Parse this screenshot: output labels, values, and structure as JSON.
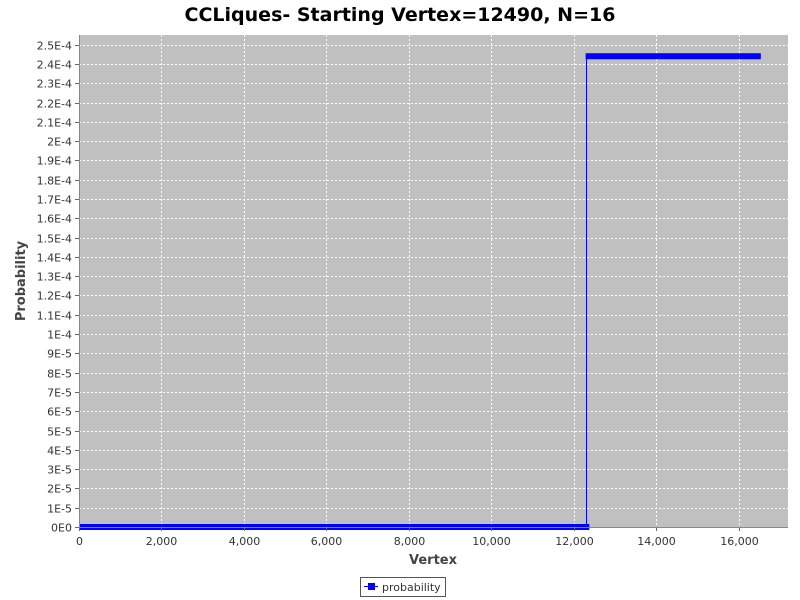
{
  "chart_data": {
    "type": "line",
    "title": "CCLiques- Starting Vertex=12490, N=16",
    "xlabel": "Vertex",
    "ylabel": "Probability",
    "xlim": [
      0,
      17200
    ],
    "ylim": [
      0,
      0.000255
    ],
    "x_ticks": [
      {
        "value": 0,
        "label": "0"
      },
      {
        "value": 2000,
        "label": "2,000"
      },
      {
        "value": 4000,
        "label": "4,000"
      },
      {
        "value": 6000,
        "label": "6,000"
      },
      {
        "value": 8000,
        "label": "8,000"
      },
      {
        "value": 10000,
        "label": "10,000"
      },
      {
        "value": 12000,
        "label": "12,000"
      },
      {
        "value": 14000,
        "label": "14,000"
      },
      {
        "value": 16000,
        "label": "16,000"
      }
    ],
    "y_ticks": [
      {
        "value": 0,
        "label": "0E0"
      },
      {
        "value": 1e-05,
        "label": "1E-5"
      },
      {
        "value": 2e-05,
        "label": "2E-5"
      },
      {
        "value": 3e-05,
        "label": "3E-5"
      },
      {
        "value": 4e-05,
        "label": "4E-5"
      },
      {
        "value": 5e-05,
        "label": "5E-5"
      },
      {
        "value": 6e-05,
        "label": "6E-5"
      },
      {
        "value": 7e-05,
        "label": "7E-5"
      },
      {
        "value": 8e-05,
        "label": "8E-5"
      },
      {
        "value": 9e-05,
        "label": "9E-5"
      },
      {
        "value": 0.0001,
        "label": "1E-4"
      },
      {
        "value": 0.00011,
        "label": "1.1E-4"
      },
      {
        "value": 0.00012,
        "label": "1.2E-4"
      },
      {
        "value": 0.00013,
        "label": "1.3E-4"
      },
      {
        "value": 0.00014,
        "label": "1.4E-4"
      },
      {
        "value": 0.00015,
        "label": "1.5E-4"
      },
      {
        "value": 0.00016,
        "label": "1.6E-4"
      },
      {
        "value": 0.00017,
        "label": "1.7E-4"
      },
      {
        "value": 0.00018,
        "label": "1.8E-4"
      },
      {
        "value": 0.00019,
        "label": "1.9E-4"
      },
      {
        "value": 0.0002,
        "label": "2E-4"
      },
      {
        "value": 0.00021,
        "label": "2.1E-4"
      },
      {
        "value": 0.00022,
        "label": "2.2E-4"
      },
      {
        "value": 0.00023,
        "label": "2.3E-4"
      },
      {
        "value": 0.00024,
        "label": "2.4E-4"
      },
      {
        "value": 0.00025,
        "label": "2.5E-4"
      }
    ],
    "series": [
      {
        "name": "probability",
        "color": "#0000ff",
        "segments": [
          {
            "x_start": 0,
            "x_end": 12380,
            "y": 0
          },
          {
            "x_start": 12290,
            "x_end": 16540,
            "y": 0.000244
          }
        ],
        "step": {
          "x": 12290,
          "y_from": 0,
          "y_to": 0.000244
        }
      }
    ],
    "grid": true,
    "plot_background": "#c0c0c0",
    "legend": {
      "position": "bottom-center",
      "label": "probability"
    }
  }
}
